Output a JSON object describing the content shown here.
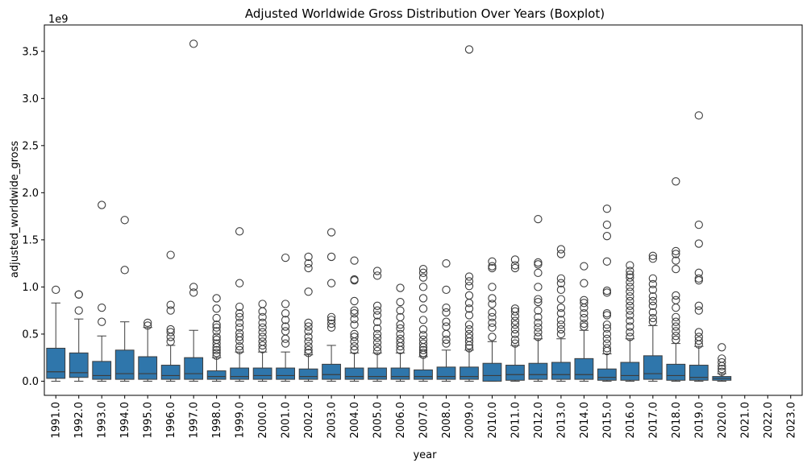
{
  "chart_data": {
    "type": "boxplot",
    "title": "Adjusted Worldwide Gross Distribution Over Years (Boxplot)",
    "xlabel": "year",
    "ylabel": "adjusted_worldwide_gross",
    "y_offset_label": "1e9",
    "ylim": [
      -0.15,
      3.78
    ],
    "yticks": [
      0.0,
      0.5,
      1.0,
      1.5,
      2.0,
      2.5,
      3.0,
      3.5
    ],
    "ytick_labels": [
      "0.0",
      "0.5",
      "1.0",
      "1.5",
      "2.0",
      "2.5",
      "3.0",
      "3.5"
    ],
    "grid": false,
    "box_color": "#2f76ab",
    "categories": [
      "1991.0",
      "1992.0",
      "1993.0",
      "1994.0",
      "1995.0",
      "1996.0",
      "1997.0",
      "1998.0",
      "1999.0",
      "2000.0",
      "2001.0",
      "2002.0",
      "2003.0",
      "2004.0",
      "2005.0",
      "2006.0",
      "2007.0",
      "2008.0",
      "2009.0",
      "2010.0",
      "2011.0",
      "2012.0",
      "2013.0",
      "2014.0",
      "2015.0",
      "2016.0",
      "2017.0",
      "2018.0",
      "2019.0",
      "2020.0",
      "2021.0",
      "2022.0",
      "2023.0"
    ],
    "boxes": [
      {
        "min": 0.0,
        "q1": 0.03,
        "median": 0.1,
        "q3": 0.35,
        "max": 0.83,
        "outliers": [
          0.97
        ]
      },
      {
        "min": 0.0,
        "q1": 0.04,
        "median": 0.09,
        "q3": 0.3,
        "max": 0.66,
        "outliers": [
          0.75,
          0.92,
          0.92
        ]
      },
      {
        "min": 0.0,
        "q1": 0.02,
        "median": 0.06,
        "q3": 0.21,
        "max": 0.48,
        "outliers": [
          0.63,
          0.78,
          1.87
        ]
      },
      {
        "min": 0.0,
        "q1": 0.02,
        "median": 0.08,
        "q3": 0.33,
        "max": 0.63,
        "outliers": [
          1.18,
          1.71
        ]
      },
      {
        "min": 0.0,
        "q1": 0.02,
        "median": 0.08,
        "q3": 0.26,
        "max": 0.57,
        "outliers": [
          0.59,
          0.62
        ]
      },
      {
        "min": 0.0,
        "q1": 0.02,
        "median": 0.06,
        "q3": 0.17,
        "max": 0.38,
        "outliers": [
          0.42,
          0.47,
          0.52,
          0.55,
          0.75,
          0.81,
          1.34
        ]
      },
      {
        "min": 0.0,
        "q1": 0.02,
        "median": 0.08,
        "q3": 0.25,
        "max": 0.54,
        "outliers": [
          0.94,
          1.0,
          3.58
        ]
      },
      {
        "min": 0.0,
        "q1": 0.02,
        "median": 0.05,
        "q3": 0.11,
        "max": 0.25,
        "outliers": [
          0.27,
          0.3,
          0.33,
          0.36,
          0.4,
          0.44,
          0.47,
          0.53,
          0.57,
          0.6,
          0.67,
          0.77,
          0.88
        ]
      },
      {
        "min": 0.0,
        "q1": 0.02,
        "median": 0.05,
        "q3": 0.14,
        "max": 0.31,
        "outliers": [
          0.33,
          0.37,
          0.43,
          0.47,
          0.51,
          0.57,
          0.62,
          0.68,
          0.72,
          0.79,
          1.04,
          1.59
        ]
      },
      {
        "min": 0.0,
        "q1": 0.02,
        "median": 0.06,
        "q3": 0.14,
        "max": 0.31,
        "outliers": [
          0.34,
          0.38,
          0.42,
          0.47,
          0.52,
          0.57,
          0.62,
          0.68,
          0.74,
          0.82
        ]
      },
      {
        "min": 0.0,
        "q1": 0.02,
        "median": 0.06,
        "q3": 0.14,
        "max": 0.31,
        "outliers": [
          0.4,
          0.45,
          0.53,
          0.58,
          0.65,
          0.72,
          0.82,
          1.31
        ]
      },
      {
        "min": 0.0,
        "q1": 0.02,
        "median": 0.05,
        "q3": 0.13,
        "max": 0.28,
        "outliers": [
          0.3,
          0.33,
          0.37,
          0.42,
          0.47,
          0.53,
          0.58,
          0.62,
          0.95,
          1.2,
          1.25,
          1.32
        ]
      },
      {
        "min": 0.0,
        "q1": 0.02,
        "median": 0.07,
        "q3": 0.18,
        "max": 0.38,
        "outliers": [
          0.57,
          0.61,
          0.65,
          0.68,
          1.04,
          1.32,
          1.58
        ]
      },
      {
        "min": 0.0,
        "q1": 0.02,
        "median": 0.05,
        "q3": 0.14,
        "max": 0.3,
        "outliers": [
          0.33,
          0.37,
          0.42,
          0.47,
          0.5,
          0.6,
          0.66,
          0.72,
          0.75,
          0.85,
          1.07,
          1.08,
          1.28
        ]
      },
      {
        "min": 0.0,
        "q1": 0.02,
        "median": 0.05,
        "q3": 0.14,
        "max": 0.3,
        "outliers": [
          0.32,
          0.36,
          0.41,
          0.46,
          0.5,
          0.56,
          0.63,
          0.7,
          0.75,
          0.8,
          1.12,
          1.17
        ]
      },
      {
        "min": 0.0,
        "q1": 0.02,
        "median": 0.05,
        "q3": 0.14,
        "max": 0.3,
        "outliers": [
          0.33,
          0.37,
          0.41,
          0.45,
          0.5,
          0.56,
          0.6,
          0.68,
          0.75,
          0.84,
          0.99
        ]
      },
      {
        "min": 0.0,
        "q1": 0.02,
        "median": 0.05,
        "q3": 0.12,
        "max": 0.26,
        "outliers": [
          0.28,
          0.3,
          0.33,
          0.36,
          0.4,
          0.44,
          0.49,
          0.55,
          0.65,
          0.77,
          0.88,
          1.0,
          1.1,
          1.15,
          1.19
        ]
      },
      {
        "min": 0.0,
        "q1": 0.02,
        "median": 0.05,
        "q3": 0.15,
        "max": 0.33,
        "outliers": [
          0.4,
          0.44,
          0.5,
          0.58,
          0.63,
          0.73,
          0.78,
          0.97,
          1.25
        ]
      },
      {
        "min": 0.0,
        "q1": 0.02,
        "median": 0.05,
        "q3": 0.15,
        "max": 0.33,
        "outliers": [
          0.35,
          0.38,
          0.42,
          0.46,
          0.5,
          0.55,
          0.6,
          0.7,
          0.77,
          0.83,
          0.91,
          1.01,
          1.06,
          1.11,
          3.52
        ]
      },
      {
        "min": 0.0,
        "q1": 0.0,
        "median": 0.06,
        "q3": 0.19,
        "max": 0.42,
        "outliers": [
          0.47,
          0.57,
          0.62,
          0.68,
          0.73,
          0.82,
          0.88,
          1.0,
          1.2,
          1.22,
          1.27
        ]
      },
      {
        "min": 0.0,
        "q1": 0.01,
        "median": 0.07,
        "q3": 0.17,
        "max": 0.38,
        "outliers": [
          0.4,
          0.44,
          0.5,
          0.55,
          0.6,
          0.64,
          0.69,
          0.74,
          0.77,
          1.2,
          1.23,
          1.29
        ]
      },
      {
        "min": 0.0,
        "q1": 0.02,
        "median": 0.07,
        "q3": 0.19,
        "max": 0.45,
        "outliers": [
          0.47,
          0.52,
          0.57,
          0.62,
          0.68,
          0.75,
          0.84,
          0.87,
          1.0,
          1.15,
          1.24,
          1.26,
          1.72
        ]
      },
      {
        "min": 0.0,
        "q1": 0.02,
        "median": 0.07,
        "q3": 0.2,
        "max": 0.45,
        "outliers": [
          0.5,
          0.55,
          0.6,
          0.65,
          0.72,
          0.78,
          0.87,
          0.97,
          1.04,
          1.09,
          1.35,
          1.4
        ]
      },
      {
        "min": 0.0,
        "q1": 0.02,
        "median": 0.07,
        "q3": 0.24,
        "max": 0.54,
        "outliers": [
          0.58,
          0.61,
          0.67,
          0.72,
          0.78,
          0.83,
          0.86,
          1.04,
          1.22
        ]
      },
      {
        "min": 0.0,
        "q1": 0.01,
        "median": 0.04,
        "q3": 0.13,
        "max": 0.29,
        "outliers": [
          0.32,
          0.35,
          0.4,
          0.45,
          0.5,
          0.56,
          0.6,
          0.7,
          0.72,
          0.94,
          0.96,
          1.27,
          1.54,
          1.66,
          1.83
        ]
      },
      {
        "min": 0.0,
        "q1": 0.01,
        "median": 0.06,
        "q3": 0.2,
        "max": 0.45,
        "outliers": [
          0.47,
          0.52,
          0.58,
          0.64,
          0.7,
          0.75,
          0.8,
          0.85,
          0.9,
          0.95,
          1.0,
          1.05,
          1.1,
          1.13,
          1.17,
          1.23
        ]
      },
      {
        "min": 0.0,
        "q1": 0.02,
        "median": 0.08,
        "q3": 0.27,
        "max": 0.59,
        "outliers": [
          0.63,
          0.67,
          0.73,
          0.8,
          0.85,
          0.9,
          0.97,
          1.03,
          1.09,
          1.3,
          1.33
        ]
      },
      {
        "min": 0.0,
        "q1": 0.01,
        "median": 0.06,
        "q3": 0.18,
        "max": 0.4,
        "outliers": [
          0.44,
          0.48,
          0.53,
          0.58,
          0.63,
          0.68,
          0.78,
          0.86,
          0.91,
          1.19,
          1.28,
          1.35,
          1.38,
          2.12
        ]
      },
      {
        "min": 0.0,
        "q1": 0.01,
        "median": 0.04,
        "q3": 0.17,
        "max": 0.37,
        "outliers": [
          0.39,
          0.43,
          0.47,
          0.52,
          0.75,
          0.8,
          1.07,
          1.09,
          1.15,
          1.46,
          1.66,
          2.82
        ]
      },
      {
        "min": 0.0,
        "q1": 0.01,
        "median": 0.03,
        "q3": 0.05,
        "max": 0.08,
        "outliers": [
          0.1,
          0.13,
          0.16,
          0.2,
          0.24,
          0.36
        ]
      },
      null,
      null,
      null
    ]
  }
}
